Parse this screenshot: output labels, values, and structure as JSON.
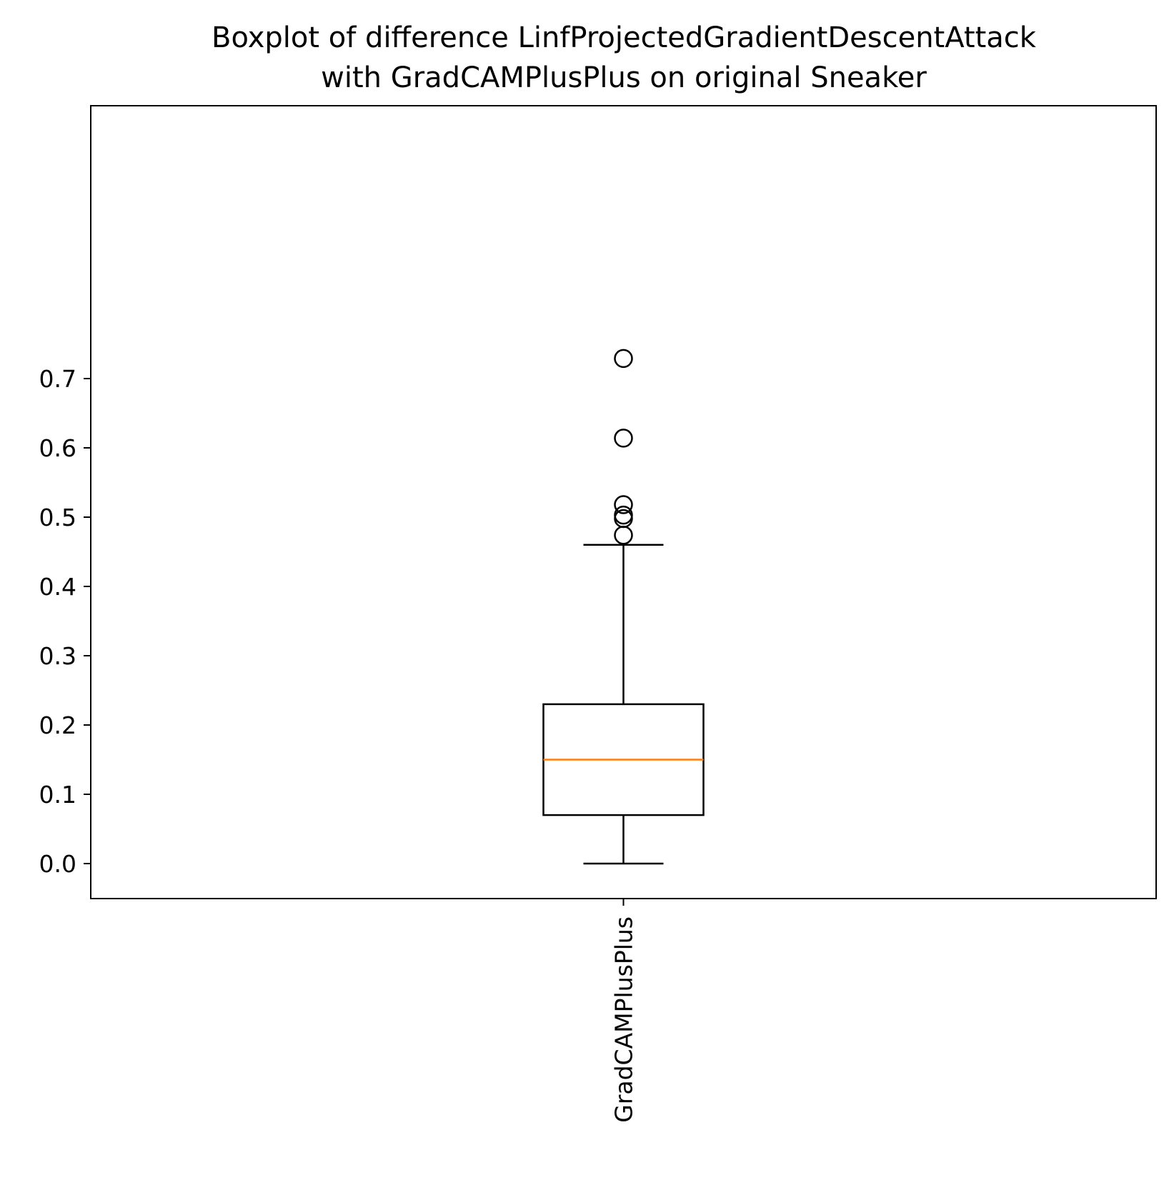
{
  "chart_data": {
    "type": "box",
    "title": "Boxplot of difference LinfProjectedGradientDescentAttack\nwith GradCAMPlusPlus on original Sneaker",
    "title_lines": [
      "Boxplot of difference LinfProjectedGradientDescentAttack",
      "with GradCAMPlusPlus on original Sneaker"
    ],
    "xlabel": "",
    "ylabel": "",
    "ylim": [
      -0.035,
      0.765
    ],
    "yticks": [
      0.0,
      0.1,
      0.2,
      0.3,
      0.4,
      0.5,
      0.6,
      0.7
    ],
    "ytick_labels": [
      "0.0",
      "0.1",
      "0.2",
      "0.3",
      "0.4",
      "0.5",
      "0.6",
      "0.7"
    ],
    "categories": [
      "GradCAMPlusPlus"
    ],
    "grid": false,
    "series": [
      {
        "whisker_low": 0.0,
        "q1": 0.07,
        "median": 0.15,
        "q3": 0.23,
        "whisker_high": 0.46,
        "outliers": [
          0.474,
          0.498,
          0.503,
          0.518,
          0.614,
          0.729
        ]
      }
    ],
    "colors": {
      "box": "#000000",
      "median": "#ff7f0e",
      "outlier": "#000000"
    }
  }
}
